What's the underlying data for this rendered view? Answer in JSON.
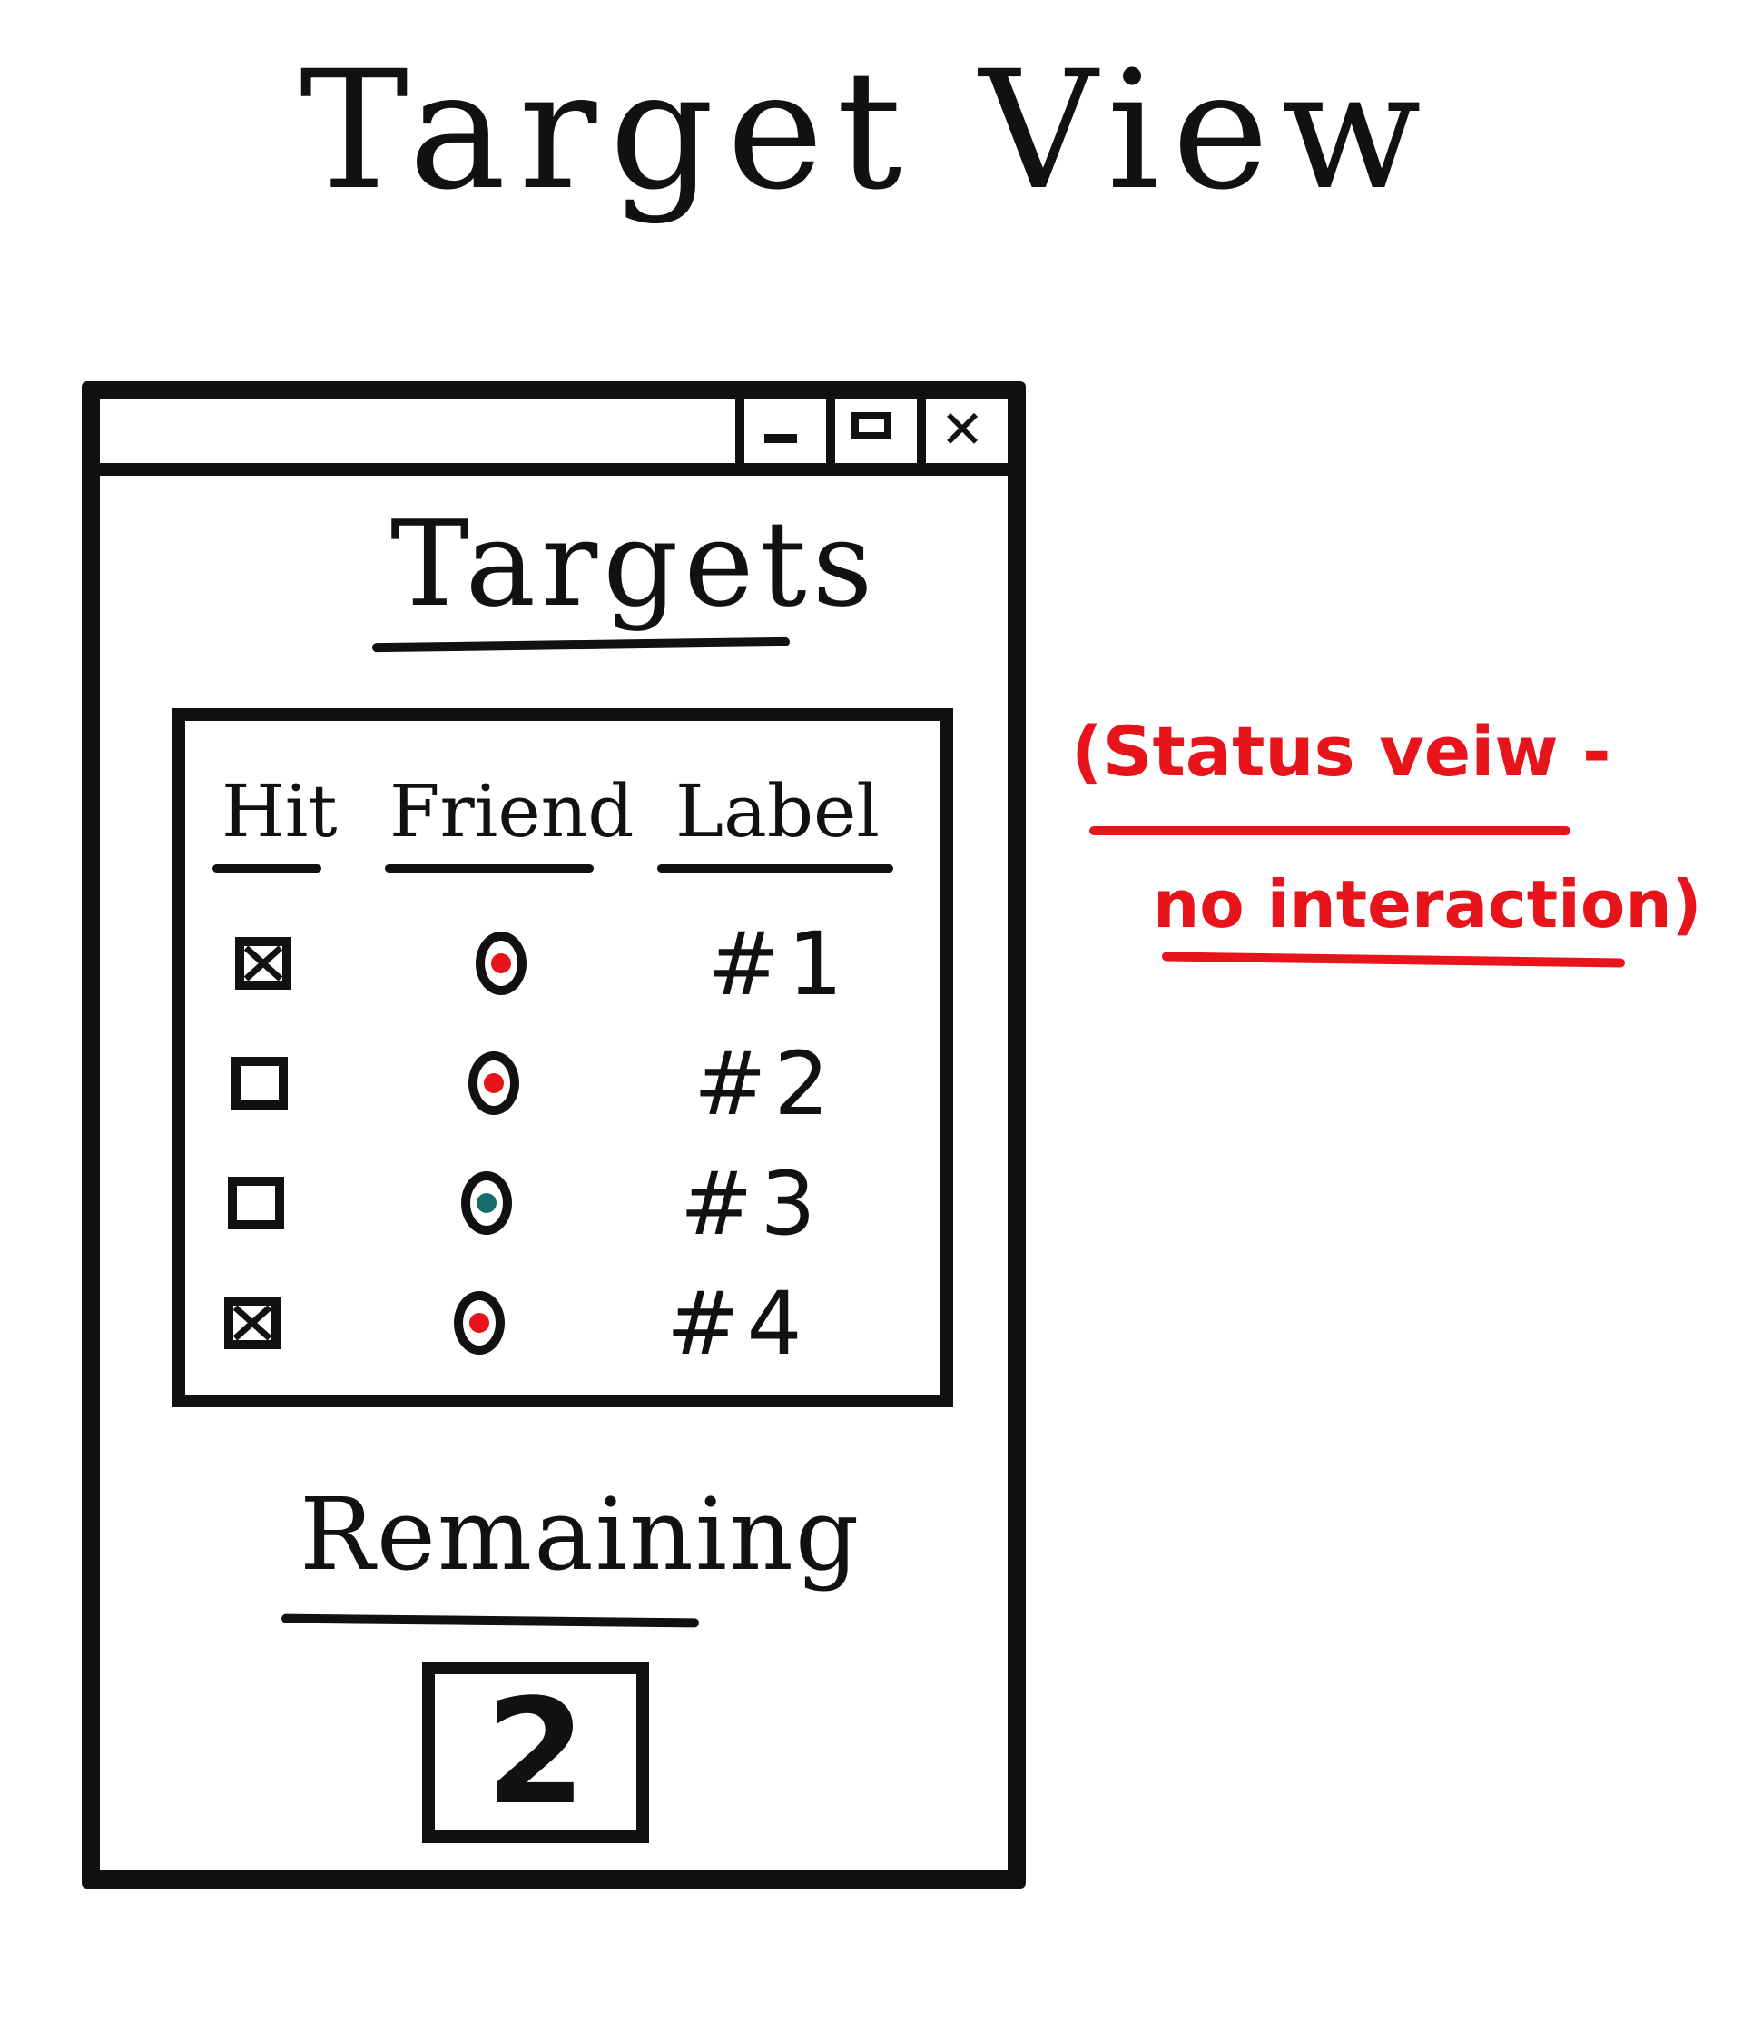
{
  "page": {
    "title": "Target View"
  },
  "window": {
    "controls": {
      "minimize_icon": "minimize-icon",
      "maximize_icon": "maximize-icon",
      "close_icon": "close-icon",
      "close_glyph": "✕"
    }
  },
  "targets": {
    "heading": "Targets",
    "columns": {
      "hit": "Hit",
      "friend": "Friend",
      "label": "Label"
    },
    "rows": [
      {
        "hit": true,
        "friend": "red",
        "label": "#1"
      },
      {
        "hit": false,
        "friend": "red",
        "label": "#2"
      },
      {
        "hit": false,
        "friend": "teal",
        "label": "#3"
      },
      {
        "hit": true,
        "friend": "red",
        "label": "#4"
      }
    ]
  },
  "remaining": {
    "heading": "Remaining",
    "value": "2"
  },
  "annotation": {
    "line1": "(Status veiw -",
    "line2": "no interaction)"
  },
  "colors": {
    "ink": "#111111",
    "annotation": "#e8141c",
    "friend_red": "#e8141c",
    "friend_teal": "#1a6b6b",
    "background": "#ffffff"
  }
}
